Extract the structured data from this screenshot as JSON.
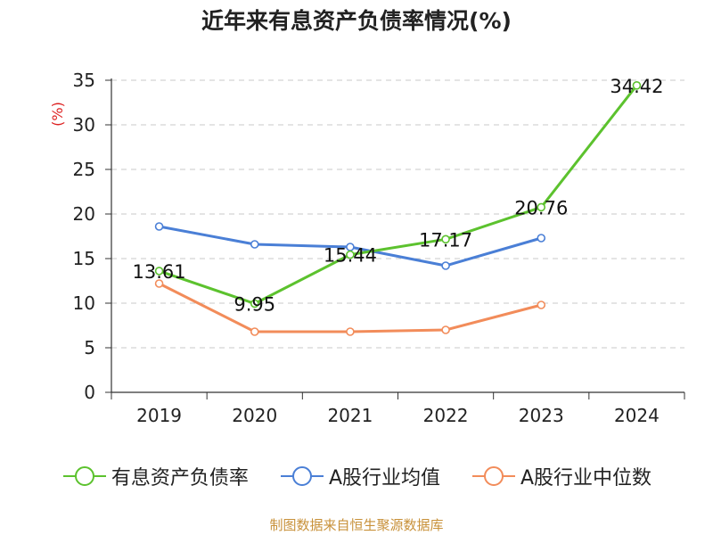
{
  "chart_data": {
    "type": "line",
    "title": "近年来有息资产负债率情况(%)",
    "ylabel": "(%)",
    "categories": [
      "2019",
      "2020",
      "2021",
      "2022",
      "2023",
      "2024"
    ],
    "yticks": [
      "0",
      "5",
      "10",
      "15",
      "20",
      "25",
      "30",
      "35"
    ],
    "ylim": [
      0,
      35
    ],
    "grid": "horizontal dashed",
    "legend_position": "bottom",
    "series": [
      {
        "name": "有息资产负债率",
        "color": "#5cc22e",
        "values": [
          13.61,
          9.95,
          15.44,
          17.17,
          20.76,
          34.42
        ],
        "labels": [
          "13.61",
          "9.95",
          "15.44",
          "17.17",
          "20.76",
          "34.42"
        ]
      },
      {
        "name": "A股行业均值",
        "color": "#4a7fd6",
        "values": [
          18.6,
          16.6,
          16.3,
          14.2,
          17.3,
          null
        ]
      },
      {
        "name": "A股行业中位数",
        "color": "#f28c5a",
        "values": [
          12.2,
          6.8,
          6.8,
          7.0,
          9.8,
          null
        ]
      }
    ]
  },
  "source": "制图数据来自恒生聚源数据库"
}
